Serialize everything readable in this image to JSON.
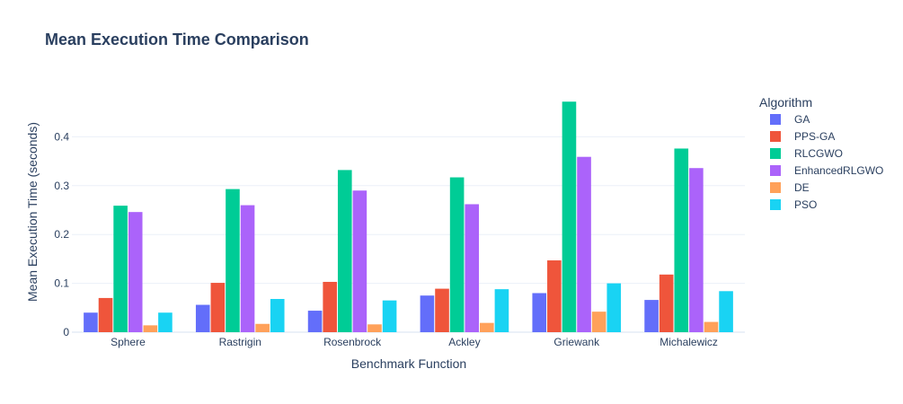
{
  "chart_data": {
    "type": "bar",
    "title": "Mean Execution Time Comparison",
    "xlabel": "Benchmark Function",
    "ylabel": "Mean Execution Time (seconds)",
    "categories": [
      "Sphere",
      "Rastrigin",
      "Rosenbrock",
      "Ackley",
      "Griewank",
      "Michalewicz"
    ],
    "ylim": [
      0,
      0.5
    ],
    "yticks": [
      0,
      0.1,
      0.2,
      0.3,
      0.4
    ],
    "ytick_labels": [
      "0",
      "0.1",
      "0.2",
      "0.3",
      "0.4"
    ],
    "grid": true,
    "legend": {
      "title": "Algorithm",
      "position": "right"
    },
    "series": [
      {
        "name": "GA",
        "color": "#636efa",
        "values": [
          0.04,
          0.056,
          0.044,
          0.075,
          0.08,
          0.066
        ]
      },
      {
        "name": "PPS-GA",
        "color": "#ef553b",
        "values": [
          0.07,
          0.101,
          0.103,
          0.089,
          0.147,
          0.118
        ]
      },
      {
        "name": "RLCGWO",
        "color": "#00cc96",
        "values": [
          0.259,
          0.293,
          0.332,
          0.317,
          0.472,
          0.376
        ]
      },
      {
        "name": "EnhancedRLGWO",
        "color": "#ab63fa",
        "values": [
          0.246,
          0.26,
          0.29,
          0.262,
          0.359,
          0.336
        ]
      },
      {
        "name": "DE",
        "color": "#ffa15a",
        "values": [
          0.014,
          0.017,
          0.016,
          0.019,
          0.042,
          0.021
        ]
      },
      {
        "name": "PSO",
        "color": "#19d3f3",
        "values": [
          0.04,
          0.068,
          0.065,
          0.088,
          0.1,
          0.084
        ]
      }
    ]
  }
}
